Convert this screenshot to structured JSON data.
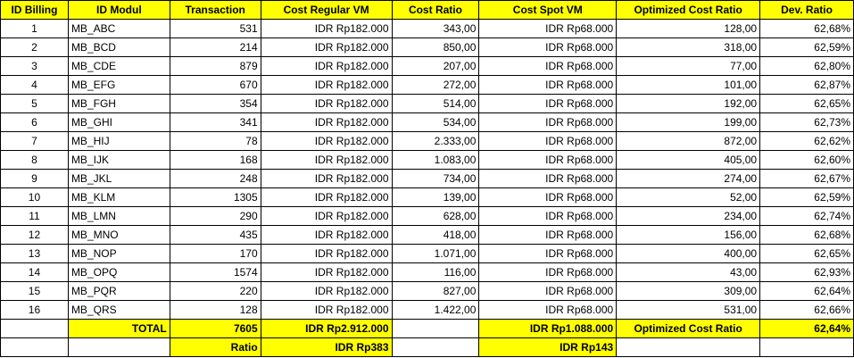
{
  "headers": [
    "ID Billing",
    "ID Modul",
    "Transaction",
    "Cost Regular VM",
    "Cost Ratio",
    "Cost Spot VM",
    "Optimized Cost Ratio",
    "Dev. Ratio"
  ],
  "rows": [
    [
      "1",
      "MB_ABC",
      "531",
      "IDR Rp182.000",
      "343,00",
      "IDR Rp68.000",
      "128,00",
      "62,68%"
    ],
    [
      "2",
      "MB_BCD",
      "214",
      "IDR Rp182.000",
      "850,00",
      "IDR Rp68.000",
      "318,00",
      "62,59%"
    ],
    [
      "3",
      "MB_CDE",
      "879",
      "IDR Rp182.000",
      "207,00",
      "IDR Rp68.000",
      "77,00",
      "62,80%"
    ],
    [
      "4",
      "MB_EFG",
      "670",
      "IDR Rp182.000",
      "272,00",
      "IDR Rp68.000",
      "101,00",
      "62,87%"
    ],
    [
      "5",
      "MB_FGH",
      "354",
      "IDR Rp182.000",
      "514,00",
      "IDR Rp68.000",
      "192,00",
      "62,65%"
    ],
    [
      "6",
      "MB_GHI",
      "341",
      "IDR Rp182.000",
      "534,00",
      "IDR Rp68.000",
      "199,00",
      "62,73%"
    ],
    [
      "7",
      "MB_HIJ",
      "78",
      "IDR Rp182.000",
      "2.333,00",
      "IDR Rp68.000",
      "872,00",
      "62,62%"
    ],
    [
      "8",
      "MB_IJK",
      "168",
      "IDR Rp182.000",
      "1.083,00",
      "IDR Rp68.000",
      "405,00",
      "62,60%"
    ],
    [
      "9",
      "MB_JKL",
      "248",
      "IDR Rp182.000",
      "734,00",
      "IDR Rp68.000",
      "274,00",
      "62,67%"
    ],
    [
      "10",
      "MB_KLM",
      "1305",
      "IDR Rp182.000",
      "139,00",
      "IDR Rp68.000",
      "52,00",
      "62,59%"
    ],
    [
      "11",
      "MB_LMN",
      "290",
      "IDR Rp182.000",
      "628,00",
      "IDR Rp68.000",
      "234,00",
      "62,74%"
    ],
    [
      "12",
      "MB_MNO",
      "435",
      "IDR Rp182.000",
      "418,00",
      "IDR Rp68.000",
      "156,00",
      "62,68%"
    ],
    [
      "13",
      "MB_NOP",
      "170",
      "IDR Rp182.000",
      "1.071,00",
      "IDR Rp68.000",
      "400,00",
      "62,65%"
    ],
    [
      "14",
      "MB_OPQ",
      "1574",
      "IDR Rp182.000",
      "116,00",
      "IDR Rp68.000",
      "43,00",
      "62,93%"
    ],
    [
      "15",
      "MB_PQR",
      "220",
      "IDR Rp182.000",
      "827,00",
      "IDR Rp68.000",
      "309,00",
      "62,64%"
    ],
    [
      "16",
      "MB_QRS",
      "128",
      "IDR Rp182.000",
      "1.422,00",
      "IDR Rp68.000",
      "531,00",
      "62,66%"
    ]
  ],
  "total": {
    "label": "TOTAL",
    "transaction": "7605",
    "cost_regular": "IDR Rp2.912.000",
    "cost_spot": "IDR Rp1.088.000",
    "optimized_label": "Optimized Cost Ratio",
    "dev_ratio": "62,64%"
  },
  "ratio": {
    "label": "Ratio",
    "cost_regular": "IDR Rp383",
    "cost_spot": "IDR Rp143"
  },
  "colors": {
    "highlight": "#ffff00",
    "border": "#000000",
    "gridline": "#d9d9d9"
  }
}
